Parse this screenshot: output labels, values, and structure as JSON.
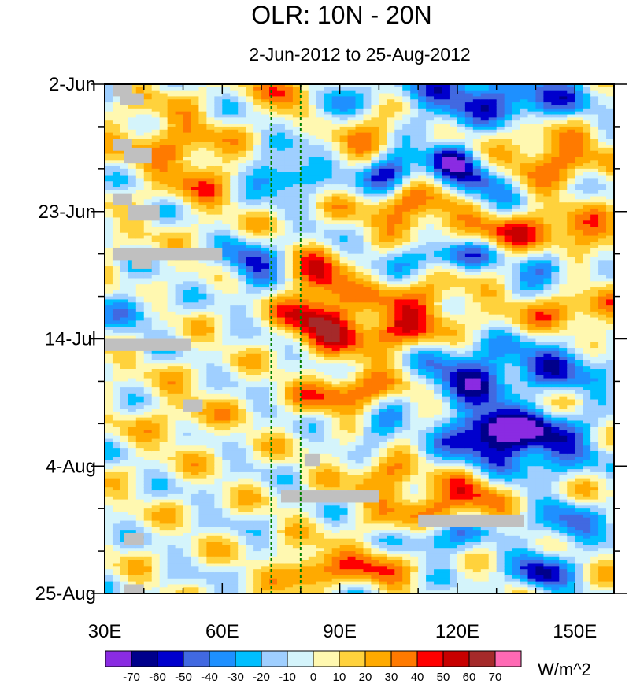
{
  "chart_data": {
    "type": "heatmap",
    "title": "OLR: 10N - 20N",
    "subtitle": "2-Jun-2012 to 25-Aug-2012",
    "x_axis": {
      "range": [
        30,
        160
      ],
      "tick_labels": [
        "30E",
        "60E",
        "90E",
        "120E",
        "150E"
      ],
      "tick_values": [
        30,
        60,
        90,
        120,
        150
      ],
      "minor_step": 10
    },
    "y_axis": {
      "range_days": [
        0,
        84
      ],
      "tick_labels": [
        "2-Jun",
        "23-Jun",
        "14-Jul",
        "4-Aug",
        "25-Aug"
      ],
      "tick_days": [
        0,
        21,
        42,
        63,
        84
      ],
      "minor_step_days": 7
    },
    "reference_lines_lon": [
      72.5,
      80
    ],
    "colorbar": {
      "unit_label": "W/m^2",
      "tick_labels": [
        "-70",
        "-60",
        "-50",
        "-40",
        "-30",
        "-20",
        "-10",
        "0",
        "10",
        "20",
        "30",
        "40",
        "50",
        "60",
        "70"
      ],
      "colors": [
        "#8a2be2",
        "#00008b",
        "#0000cd",
        "#4169e1",
        "#1e90ff",
        "#00bfff",
        "#9fcfff",
        "#d4f4fb",
        "#fff8b0",
        "#ffd23c",
        "#ffaa00",
        "#ff7a00",
        "#ff0000",
        "#c80000",
        "#a52a2a",
        "#ff69b4"
      ]
    },
    "missing_blocks": [
      {
        "lon": [
          32,
          37
        ],
        "day": [
          0,
          2
        ]
      },
      {
        "lon": [
          34,
          40
        ],
        "day": [
          1.5,
          3.5
        ]
      },
      {
        "lon": [
          32,
          37
        ],
        "day": [
          9,
          11
        ]
      },
      {
        "lon": [
          35,
          42
        ],
        "day": [
          10.5,
          13
        ]
      },
      {
        "lon": [
          32,
          37
        ],
        "day": [
          18,
          20
        ]
      },
      {
        "lon": [
          36,
          44
        ],
        "day": [
          20,
          22.5
        ]
      },
      {
        "lon": [
          32,
          60
        ],
        "day": [
          27,
          29
        ]
      },
      {
        "lon": [
          37,
          42
        ],
        "day": [
          28.5,
          30.5
        ]
      },
      {
        "lon": [
          30,
          52
        ],
        "day": [
          42,
          44
        ]
      },
      {
        "lon": [
          50,
          55
        ],
        "day": [
          52,
          54
        ]
      },
      {
        "lon": [
          81,
          85
        ],
        "day": [
          61,
          63
        ]
      },
      {
        "lon": [
          75,
          100
        ],
        "day": [
          67,
          69
        ]
      },
      {
        "lon": [
          110,
          137
        ],
        "day": [
          71,
          73
        ]
      },
      {
        "lon": [
          35,
          40
        ],
        "day": [
          74,
          76
        ]
      },
      {
        "lon": [
          35,
          40
        ],
        "day": [
          82.5,
          84
        ]
      }
    ],
    "features": [
      {
        "lon": 79,
        "day": 2,
        "sx": 5,
        "sy": 2.5,
        "amp": 50
      },
      {
        "lon": 86,
        "day": 5,
        "sx": 6,
        "sy": 3,
        "amp": -45
      },
      {
        "lon": 95,
        "day": 8,
        "sx": 7,
        "sy": 2.5,
        "amp": 45
      },
      {
        "lon": 120,
        "day": 2,
        "sx": 12,
        "sy": 3,
        "amp": -45
      },
      {
        "lon": 141,
        "day": 2,
        "sx": 10,
        "sy": 3,
        "amp": -35
      },
      {
        "lon": 118,
        "day": 12,
        "sx": 4,
        "sy": 2,
        "amp": -60
      },
      {
        "lon": 102,
        "day": 14,
        "sx": 5,
        "sy": 2.5,
        "amp": -55
      },
      {
        "lon": 126,
        "day": 16,
        "sx": 6,
        "sy": 2,
        "amp": -50
      },
      {
        "lon": 76,
        "day": 15,
        "sx": 6,
        "sy": 2,
        "amp": -50
      },
      {
        "lon": 144,
        "day": 12,
        "sx": 9,
        "sy": 3,
        "amp": 40
      },
      {
        "lon": 108,
        "day": 21,
        "sx": 8,
        "sy": 2.5,
        "amp": 40
      },
      {
        "lon": 142,
        "day": 25,
        "sx": 14,
        "sy": 2.5,
        "amp": 45
      },
      {
        "lon": 118,
        "day": 28,
        "sx": 10,
        "sy": 2,
        "amp": -40
      },
      {
        "lon": 143,
        "day": 30,
        "sx": 5,
        "sy": 2,
        "amp": -50
      },
      {
        "lon": 85,
        "day": 32,
        "sx": 5,
        "sy": 2.5,
        "amp": 55
      },
      {
        "lon": 67,
        "day": 30,
        "sx": 5,
        "sy": 2.5,
        "amp": -50
      },
      {
        "lon": 84,
        "day": 39,
        "sx": 6,
        "sy": 2.5,
        "amp": 55
      },
      {
        "lon": 100,
        "day": 41,
        "sx": 10,
        "sy": 2.5,
        "amp": 40
      },
      {
        "lon": 110,
        "day": 36,
        "sx": 8,
        "sy": 2.5,
        "amp": 35
      },
      {
        "lon": 122,
        "day": 48,
        "sx": 8,
        "sy": 3,
        "amp": -55
      },
      {
        "lon": 145,
        "day": 46,
        "sx": 10,
        "sy": 3,
        "amp": -45
      },
      {
        "lon": 127,
        "day": 56,
        "sx": 6,
        "sy": 2.5,
        "amp": -60
      },
      {
        "lon": 140,
        "day": 58,
        "sx": 10,
        "sy": 3,
        "amp": -55
      },
      {
        "lon": 128,
        "day": 62,
        "sx": 14,
        "sy": 2.5,
        "amp": -35
      },
      {
        "lon": 93,
        "day": 51,
        "sx": 9,
        "sy": 2.5,
        "amp": 40
      },
      {
        "lon": 100,
        "day": 57,
        "sx": 5,
        "sy": 2.5,
        "amp": -40
      },
      {
        "lon": 101,
        "day": 63,
        "sx": 6,
        "sy": 3,
        "amp": 35
      },
      {
        "lon": 112,
        "day": 70,
        "sx": 8,
        "sy": 3,
        "amp": 35
      },
      {
        "lon": 124,
        "day": 66,
        "sx": 6,
        "sy": 2.5,
        "amp": 40
      },
      {
        "lon": 115,
        "day": 75,
        "sx": 8,
        "sy": 2.5,
        "amp": -40
      },
      {
        "lon": 141,
        "day": 81,
        "sx": 5,
        "sy": 2,
        "amp": -60
      },
      {
        "lon": 148,
        "day": 73,
        "sx": 6,
        "sy": 2.5,
        "amp": -40
      },
      {
        "lon": 82,
        "day": 80,
        "sx": 5,
        "sy": 2,
        "amp": 45
      },
      {
        "lon": 100,
        "day": 79,
        "sx": 7,
        "sy": 2.5,
        "amp": 35
      },
      {
        "lon": 45,
        "day": 9,
        "sx": 8,
        "sy": 4,
        "amp": 25
      },
      {
        "lon": 55,
        "day": 15,
        "sx": 6,
        "sy": 4,
        "amp": 25
      },
      {
        "lon": 50,
        "day": 55,
        "sx": 8,
        "sy": 4,
        "amp": 15
      },
      {
        "lon": 37,
        "day": 37,
        "sx": 5,
        "sy": 3,
        "amp": -25
      },
      {
        "lon": 150,
        "day": 38,
        "sx": 10,
        "sy": 3,
        "amp": 30
      }
    ]
  }
}
